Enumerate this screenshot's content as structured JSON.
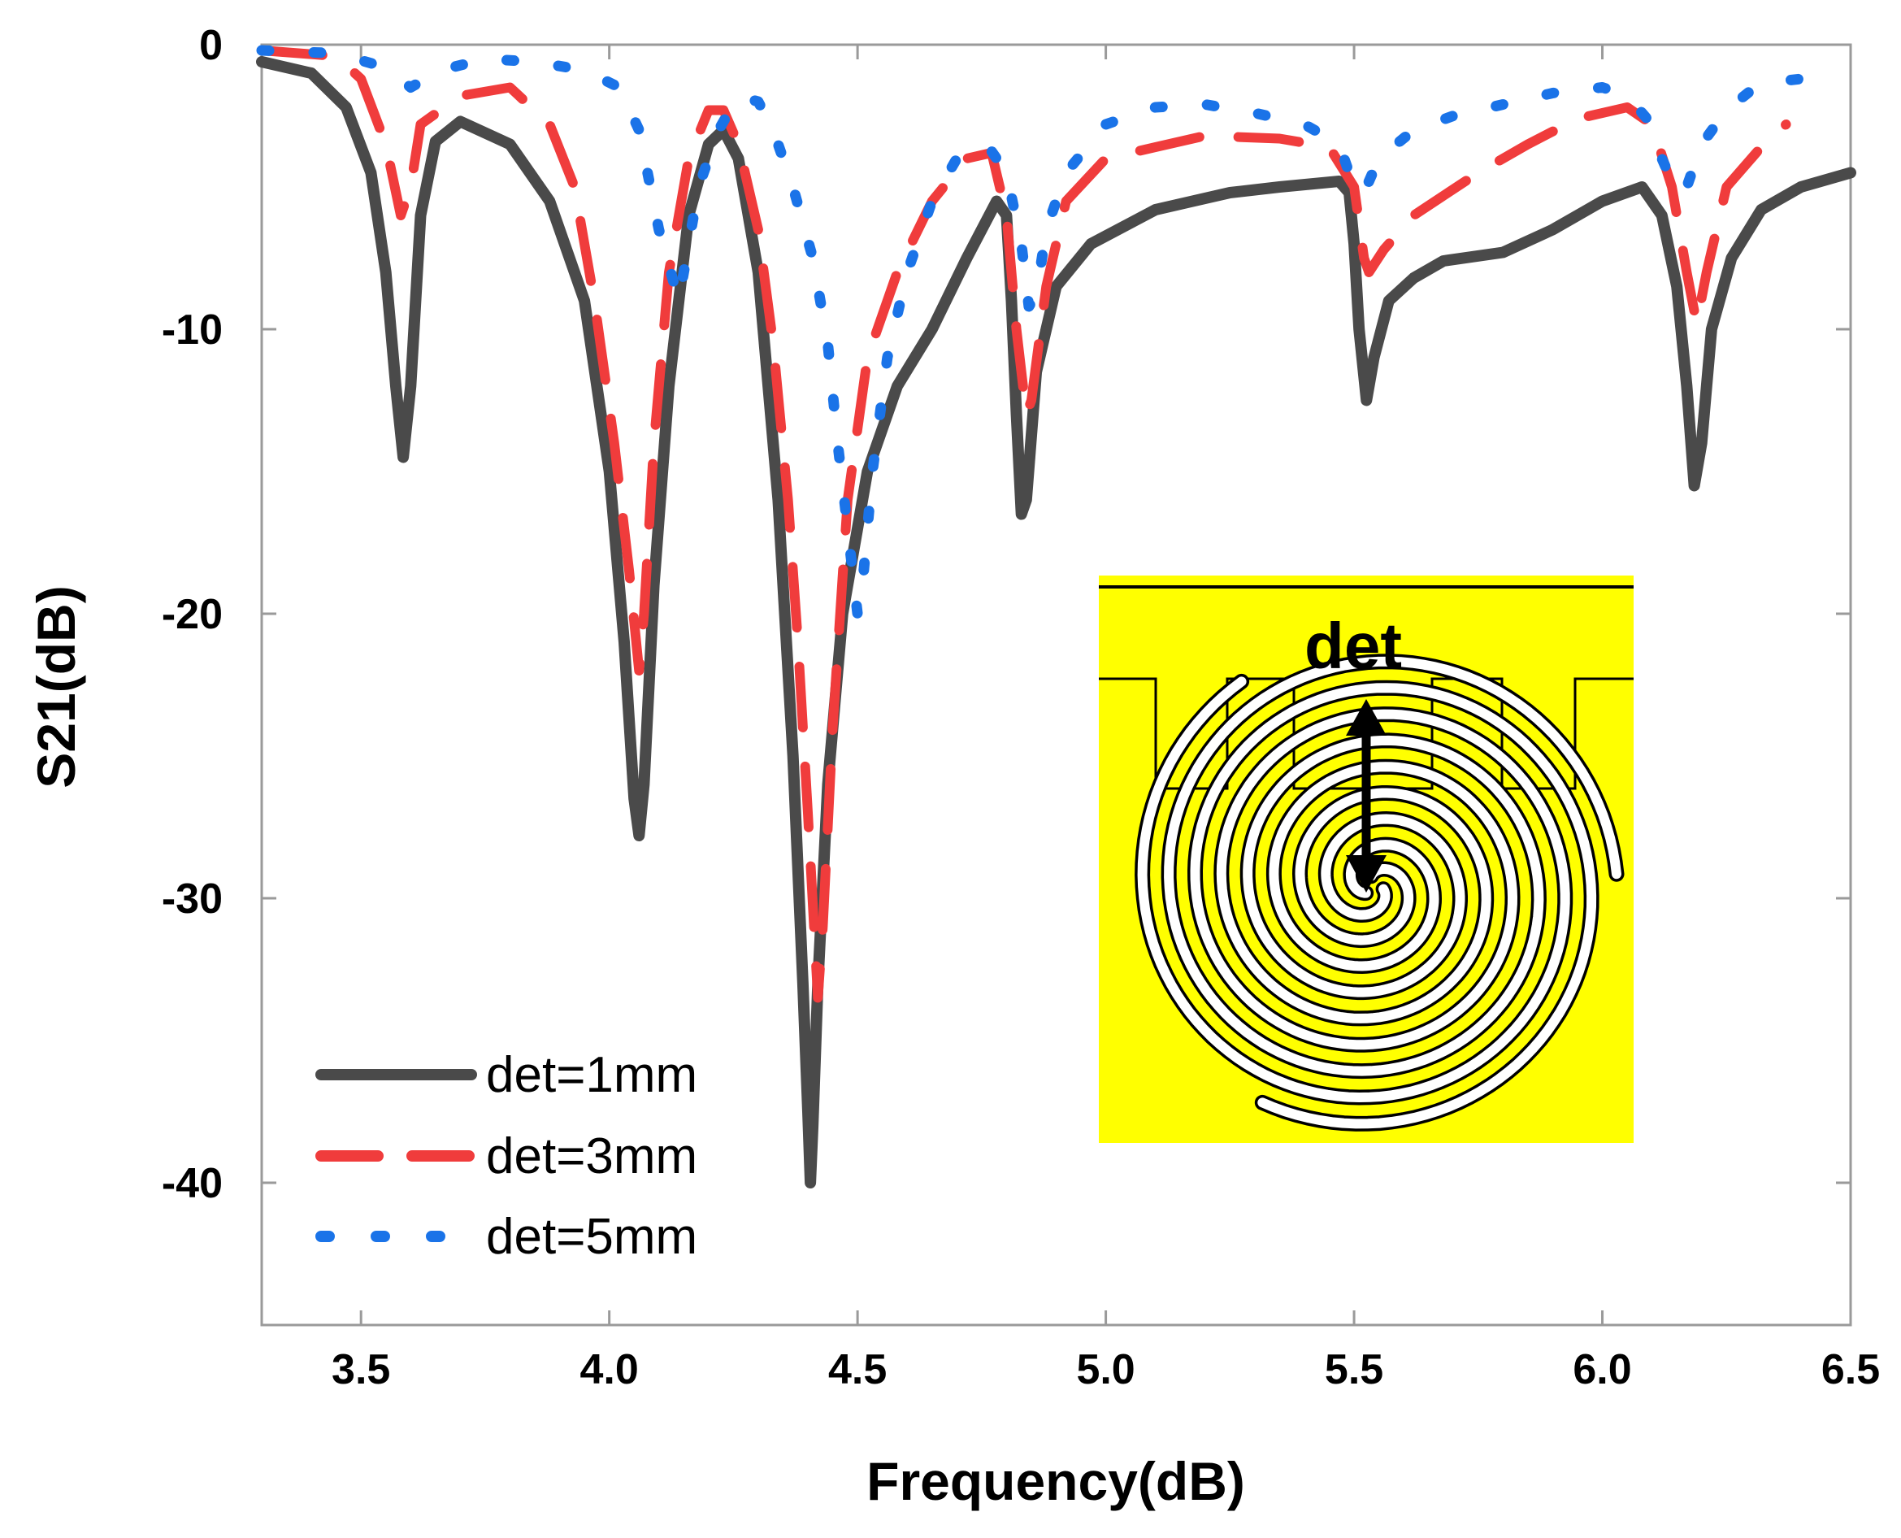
{
  "chart_data": {
    "type": "line",
    "xlabel": "Frequency(dB)",
    "ylabel": "S21(dB)",
    "xlim": [
      3.3,
      6.5
    ],
    "ylim": [
      -45,
      0
    ],
    "xticks": [
      3.5,
      4.0,
      4.5,
      5.0,
      5.5,
      6.0,
      6.5
    ],
    "xtick_labels": [
      "3.5",
      "4.0",
      "4.5",
      "5.0",
      "5.5",
      "6.0",
      "6.5"
    ],
    "yticks": [
      0,
      -10,
      -20,
      -30,
      -40
    ],
    "ytick_labels": [
      "0",
      "-10",
      "-20",
      "-30",
      "-40"
    ],
    "grid": false,
    "legend_position": "bottom-left",
    "inset": {
      "label": "det",
      "description_color": "#ffff00"
    },
    "series": [
      {
        "name": "det=1mm",
        "color": "#4a4a4a",
        "style": "solid",
        "points": [
          [
            3.3,
            -0.6
          ],
          [
            3.4,
            -1.0
          ],
          [
            3.47,
            -2.2
          ],
          [
            3.52,
            -4.5
          ],
          [
            3.55,
            -8
          ],
          [
            3.57,
            -12
          ],
          [
            3.585,
            -14.5
          ],
          [
            3.6,
            -12
          ],
          [
            3.62,
            -6
          ],
          [
            3.65,
            -3.4
          ],
          [
            3.7,
            -2.7
          ],
          [
            3.8,
            -3.5
          ],
          [
            3.88,
            -5.5
          ],
          [
            3.95,
            -9
          ],
          [
            4.0,
            -15
          ],
          [
            4.03,
            -21
          ],
          [
            4.05,
            -26.5
          ],
          [
            4.06,
            -27.8
          ],
          [
            4.07,
            -26
          ],
          [
            4.09,
            -19
          ],
          [
            4.12,
            -12
          ],
          [
            4.16,
            -6
          ],
          [
            4.2,
            -3.5
          ],
          [
            4.23,
            -3
          ],
          [
            4.26,
            -4
          ],
          [
            4.3,
            -8
          ],
          [
            4.34,
            -16
          ],
          [
            4.37,
            -25
          ],
          [
            4.39,
            -33
          ],
          [
            4.4,
            -37.5
          ],
          [
            4.405,
            -40
          ],
          [
            4.41,
            -38
          ],
          [
            4.42,
            -33
          ],
          [
            4.44,
            -26
          ],
          [
            4.47,
            -20
          ],
          [
            4.52,
            -15
          ],
          [
            4.58,
            -12
          ],
          [
            4.65,
            -10
          ],
          [
            4.72,
            -7.5
          ],
          [
            4.78,
            -5.5
          ],
          [
            4.8,
            -6
          ],
          [
            4.81,
            -9
          ],
          [
            4.82,
            -13
          ],
          [
            4.83,
            -16.5
          ],
          [
            4.84,
            -16
          ],
          [
            4.86,
            -11.5
          ],
          [
            4.9,
            -8.5
          ],
          [
            4.97,
            -7
          ],
          [
            5.1,
            -5.8
          ],
          [
            5.25,
            -5.2
          ],
          [
            5.35,
            -5
          ],
          [
            5.47,
            -4.8
          ],
          [
            5.49,
            -5.2
          ],
          [
            5.5,
            -7
          ],
          [
            5.51,
            -10
          ],
          [
            5.525,
            -12.5
          ],
          [
            5.54,
            -11
          ],
          [
            5.57,
            -9
          ],
          [
            5.62,
            -8.2
          ],
          [
            5.68,
            -7.6
          ],
          [
            5.8,
            -7.3
          ],
          [
            5.9,
            -6.5
          ],
          [
            6.0,
            -5.5
          ],
          [
            6.08,
            -5
          ],
          [
            6.12,
            -6
          ],
          [
            6.15,
            -8.5
          ],
          [
            6.17,
            -12
          ],
          [
            6.185,
            -15.5
          ],
          [
            6.2,
            -14
          ],
          [
            6.22,
            -10
          ],
          [
            6.26,
            -7.5
          ],
          [
            6.32,
            -5.8
          ],
          [
            6.4,
            -5
          ],
          [
            6.5,
            -4.5
          ]
        ]
      },
      {
        "name": "det=3mm",
        "color": "#f03c3c",
        "style": "dashed",
        "points": [
          [
            3.3,
            -0.2
          ],
          [
            3.45,
            -0.4
          ],
          [
            3.5,
            -1.2
          ],
          [
            3.55,
            -3.5
          ],
          [
            3.58,
            -6
          ],
          [
            3.6,
            -5
          ],
          [
            3.62,
            -2.8
          ],
          [
            3.7,
            -1.8
          ],
          [
            3.8,
            -1.5
          ],
          [
            3.88,
            -2.8
          ],
          [
            3.93,
            -5
          ],
          [
            3.97,
            -9
          ],
          [
            4.01,
            -14
          ],
          [
            4.04,
            -18.5
          ],
          [
            4.06,
            -22
          ],
          [
            4.07,
            -20
          ],
          [
            4.09,
            -14
          ],
          [
            4.12,
            -8
          ],
          [
            4.16,
            -4
          ],
          [
            4.2,
            -2.3
          ],
          [
            4.23,
            -2.3
          ],
          [
            4.26,
            -3.5
          ],
          [
            4.3,
            -6.5
          ],
          [
            4.33,
            -10.5
          ],
          [
            4.36,
            -16
          ],
          [
            4.38,
            -21
          ],
          [
            4.4,
            -27
          ],
          [
            4.42,
            -33.5
          ],
          [
            4.43,
            -31
          ],
          [
            4.45,
            -24
          ],
          [
            4.48,
            -16
          ],
          [
            4.52,
            -11
          ],
          [
            4.58,
            -8
          ],
          [
            4.65,
            -5.5
          ],
          [
            4.72,
            -4
          ],
          [
            4.77,
            -3.8
          ],
          [
            4.8,
            -6
          ],
          [
            4.82,
            -10
          ],
          [
            4.84,
            -13
          ],
          [
            4.85,
            -12.5
          ],
          [
            4.88,
            -8.5
          ],
          [
            4.92,
            -5.5
          ],
          [
            5.0,
            -4
          ],
          [
            5.1,
            -3.6
          ],
          [
            5.2,
            -3.2
          ],
          [
            5.35,
            -3.3
          ],
          [
            5.45,
            -3.6
          ],
          [
            5.5,
            -5
          ],
          [
            5.52,
            -7.5
          ],
          [
            5.53,
            -8
          ],
          [
            5.56,
            -7.2
          ],
          [
            5.62,
            -6
          ],
          [
            5.75,
            -4.5
          ],
          [
            5.85,
            -3.5
          ],
          [
            5.95,
            -2.6
          ],
          [
            6.05,
            -2.2
          ],
          [
            6.1,
            -2.8
          ],
          [
            6.14,
            -5
          ],
          [
            6.17,
            -8
          ],
          [
            6.19,
            -9.8
          ],
          [
            6.21,
            -8
          ],
          [
            6.25,
            -5
          ],
          [
            6.32,
            -3.6
          ],
          [
            6.37,
            -2.8
          ]
        ]
      },
      {
        "name": "det=5mm",
        "color": "#1a73e8",
        "style": "dotted",
        "points": [
          [
            3.3,
            -0.2
          ],
          [
            3.45,
            -0.3
          ],
          [
            3.55,
            -0.8
          ],
          [
            3.6,
            -1.5
          ],
          [
            3.66,
            -0.9
          ],
          [
            3.75,
            -0.5
          ],
          [
            3.85,
            -0.6
          ],
          [
            3.95,
            -0.9
          ],
          [
            4.02,
            -1.5
          ],
          [
            4.06,
            -3
          ],
          [
            4.1,
            -6.5
          ],
          [
            4.14,
            -9
          ],
          [
            4.18,
            -5
          ],
          [
            4.22,
            -3
          ],
          [
            4.26,
            -1.8
          ],
          [
            4.3,
            -2
          ],
          [
            4.33,
            -3
          ],
          [
            4.37,
            -5
          ],
          [
            4.41,
            -7.5
          ],
          [
            4.44,
            -10.5
          ],
          [
            4.46,
            -14
          ],
          [
            4.48,
            -17
          ],
          [
            4.5,
            -20
          ],
          [
            4.51,
            -19
          ],
          [
            4.53,
            -15
          ],
          [
            4.56,
            -11
          ],
          [
            4.6,
            -8
          ],
          [
            4.65,
            -5.5
          ],
          [
            4.7,
            -4
          ],
          [
            4.76,
            -3.5
          ],
          [
            4.8,
            -4.5
          ],
          [
            4.83,
            -7
          ],
          [
            4.845,
            -9.2
          ],
          [
            4.86,
            -8.8
          ],
          [
            4.88,
            -6.5
          ],
          [
            4.92,
            -4.5
          ],
          [
            5.0,
            -2.8
          ],
          [
            5.1,
            -2.2
          ],
          [
            5.2,
            -2.1
          ],
          [
            5.3,
            -2.4
          ],
          [
            5.4,
            -2.8
          ],
          [
            5.47,
            -3.5
          ],
          [
            5.5,
            -5
          ],
          [
            5.52,
            -5.2
          ],
          [
            5.55,
            -4
          ],
          [
            5.62,
            -3
          ],
          [
            5.7,
            -2.5
          ],
          [
            5.8,
            -2.1
          ],
          [
            5.9,
            -1.7
          ],
          [
            6.0,
            -1.5
          ],
          [
            6.05,
            -1.8
          ],
          [
            6.09,
            -2.6
          ],
          [
            6.12,
            -4
          ],
          [
            6.15,
            -5.2
          ],
          [
            6.17,
            -5
          ],
          [
            6.2,
            -3.5
          ],
          [
            6.25,
            -2.3
          ],
          [
            6.3,
            -1.6
          ],
          [
            6.35,
            -1.3
          ],
          [
            6.4,
            -1.2
          ]
        ]
      }
    ]
  }
}
